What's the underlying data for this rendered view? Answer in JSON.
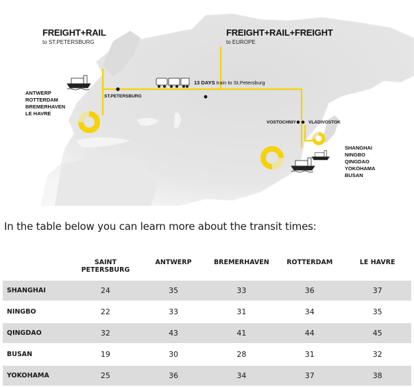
{
  "map": {
    "left_route": {
      "title": "FREIGHT+RAIL",
      "subtitle": "to ST.PETERSBURG"
    },
    "right_route": {
      "title": "FREIGHT+RAIL+FREIGHT",
      "subtitle": "to EUROPE"
    },
    "european_ports": [
      "ANTWERP",
      "ROTTERDAM",
      "BREMERHAVEN",
      "LE HAVRE"
    ],
    "asian_ports": [
      "SHANGHAI",
      "NINGBO",
      "QINGDAO",
      "YOKOHAMA",
      "BUSAN"
    ],
    "city_st_petersburg": "ST.PETERSBURG",
    "city_vostochniy": "VOSTOCHNIY",
    "city_vladivostok": "VLADIVOSTOK",
    "train_days": "13 DAYS",
    "train_text": "train to St.Petersburg",
    "colors": {
      "accent": "#f5d20a",
      "ring_light": "#efe3a0",
      "land": "#e2e2e2"
    }
  },
  "intro_text": "In the table below you can learn more about the transit times:",
  "table": {
    "corner": "",
    "columns": [
      "SAINT PETERSBURG",
      "ANTWERP",
      "BREMERHAVEN",
      "ROTTERDAM",
      "LE HAVRE"
    ],
    "rows": [
      {
        "port": "SHANGHAI",
        "values": [
          "24",
          "35",
          "33",
          "36",
          "37"
        ]
      },
      {
        "port": "NINGBO",
        "values": [
          "22",
          "33",
          "31",
          "34",
          "35"
        ]
      },
      {
        "port": "QINGDAO",
        "values": [
          "32",
          "43",
          "41",
          "44",
          "45"
        ]
      },
      {
        "port": "BUSAN",
        "values": [
          "19",
          "30",
          "28",
          "31",
          "32"
        ]
      },
      {
        "port": "YOKOHAMA",
        "values": [
          "25",
          "36",
          "34",
          "37",
          "38"
        ]
      }
    ]
  }
}
